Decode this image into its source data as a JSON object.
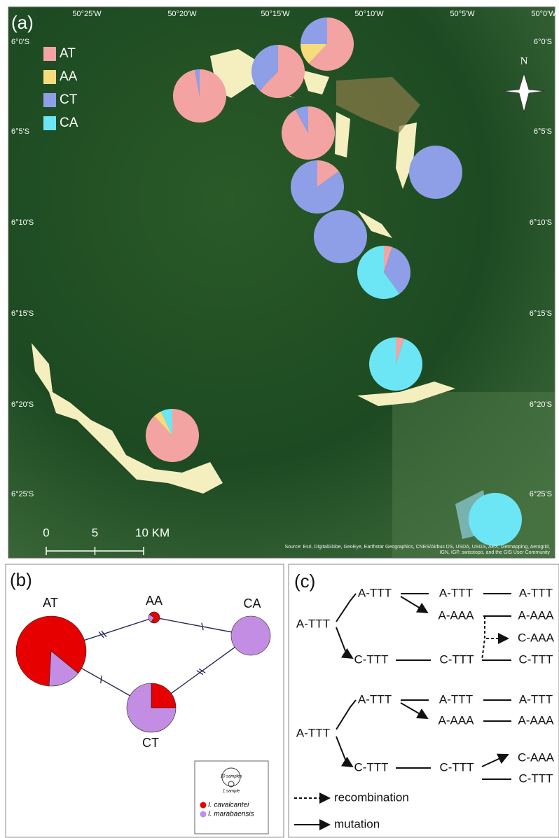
{
  "panel_a": {
    "label": "(a)",
    "lon_labels": [
      "50°25'W",
      "50°20'W",
      "50°15'W",
      "50°10'W",
      "50°5'W",
      "50°0'W"
    ],
    "lat_labels": [
      "6°0'S",
      "6°5'S",
      "6°10'S",
      "6°15'S",
      "6°20'S",
      "6°25'S"
    ],
    "legend": [
      {
        "name": "AT",
        "color": "#f4a3a3"
      },
      {
        "name": "AA",
        "color": "#f7dc7c"
      },
      {
        "name": "CT",
        "color": "#8e9fe8"
      },
      {
        "name": "CA",
        "color": "#6ce6f4"
      }
    ],
    "north": "N",
    "scale_ticks": [
      0,
      5,
      {
        "value": 10,
        "label": "10 KM"
      }
    ],
    "source": "Source: Esri, DigitalGlobe, GeoEye, Earthstar Geographics, CNES/Airbus DS, USDA, USGS, AEX, Getmapping, Aerogrid, IGN, IGP, swisstopo, and the GIS User Community",
    "pies": [
      [
        97,
        0,
        3,
        0
      ],
      [
        62,
        0,
        38,
        0
      ],
      [
        62,
        13,
        25,
        0
      ],
      [
        92,
        0,
        8,
        0
      ],
      [
        15,
        0,
        85,
        0
      ],
      [
        0,
        0,
        100,
        0
      ],
      [
        0,
        0,
        100,
        0
      ],
      [
        5,
        0,
        35,
        60
      ],
      [
        5,
        0,
        0,
        95
      ],
      [
        88,
        5,
        0,
        7
      ],
      [
        0,
        0,
        0,
        100
      ]
    ]
  },
  "panel_b": {
    "label": "(b)",
    "species": [
      {
        "name": "I. cavalcantei",
        "color": "#e60000"
      },
      {
        "name": "I. marabaensis",
        "color": "#c38de3"
      }
    ],
    "nodes": [
      {
        "label": "AT",
        "values": [
          85,
          15
        ]
      },
      {
        "label": "AA",
        "values": [
          75,
          25
        ]
      },
      {
        "label": "CA",
        "values": [
          0,
          100
        ]
      },
      {
        "label": "CT",
        "values": [
          25,
          75
        ]
      }
    ],
    "edge_mutations": [
      2,
      1,
      1,
      2
    ],
    "size_legend": [
      "10 samples",
      "1 sample"
    ]
  },
  "panel_c": {
    "label": "(c)",
    "top": [
      "A-TTT",
      "A-TTT",
      "A-TTT",
      "A-TTT",
      "A-AAA",
      "A-AAA",
      "C-AAA",
      "C-TTT",
      "C-TTT",
      "C-TTT"
    ],
    "bottom": [
      "A-TTT",
      "A-TTT",
      "A-TTT",
      "A-TTT",
      "A-AAA",
      "A-AAA",
      "C-AAA",
      "C-TTT",
      "C-TTT",
      "C-TTT"
    ],
    "legend": [
      "recombination",
      "mutation"
    ]
  }
}
